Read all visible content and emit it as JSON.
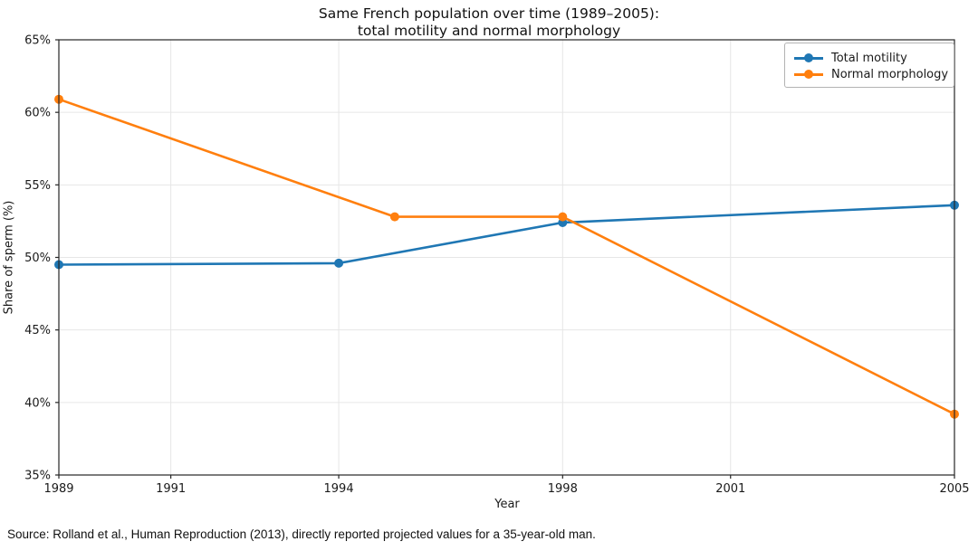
{
  "title": "Same French population over time (1989–2005):\ntotal motility and normal morphology",
  "source_note": "Source: Rolland et al., Human Reproduction (2013), directly reported projected values for a 35-year-old man.",
  "chart_data": {
    "type": "line",
    "title": "Same French population over time (1989–2005): total motility and normal morphology",
    "xlabel": "Year",
    "ylabel": "Share of sperm (%)",
    "xlim": [
      1989,
      2005
    ],
    "ylim": [
      35,
      65
    ],
    "xticks": [
      1989,
      1991,
      1994,
      1998,
      2001,
      2005
    ],
    "yticks": [
      35,
      40,
      45,
      50,
      55,
      60,
      65
    ],
    "ytick_suffix": "%",
    "grid": true,
    "legend_position": "upper right",
    "series": [
      {
        "name": "Total motility",
        "color": "#1f77b4",
        "points": [
          [
            1989,
            49.5
          ],
          [
            1994,
            49.6
          ],
          [
            1998,
            52.4
          ],
          [
            2005,
            53.6
          ]
        ]
      },
      {
        "name": "Normal morphology",
        "color": "#ff7f0e",
        "points": [
          [
            1989,
            60.9
          ],
          [
            1995,
            52.8
          ],
          [
            1998,
            52.8
          ],
          [
            2005,
            39.2
          ]
        ]
      }
    ]
  }
}
